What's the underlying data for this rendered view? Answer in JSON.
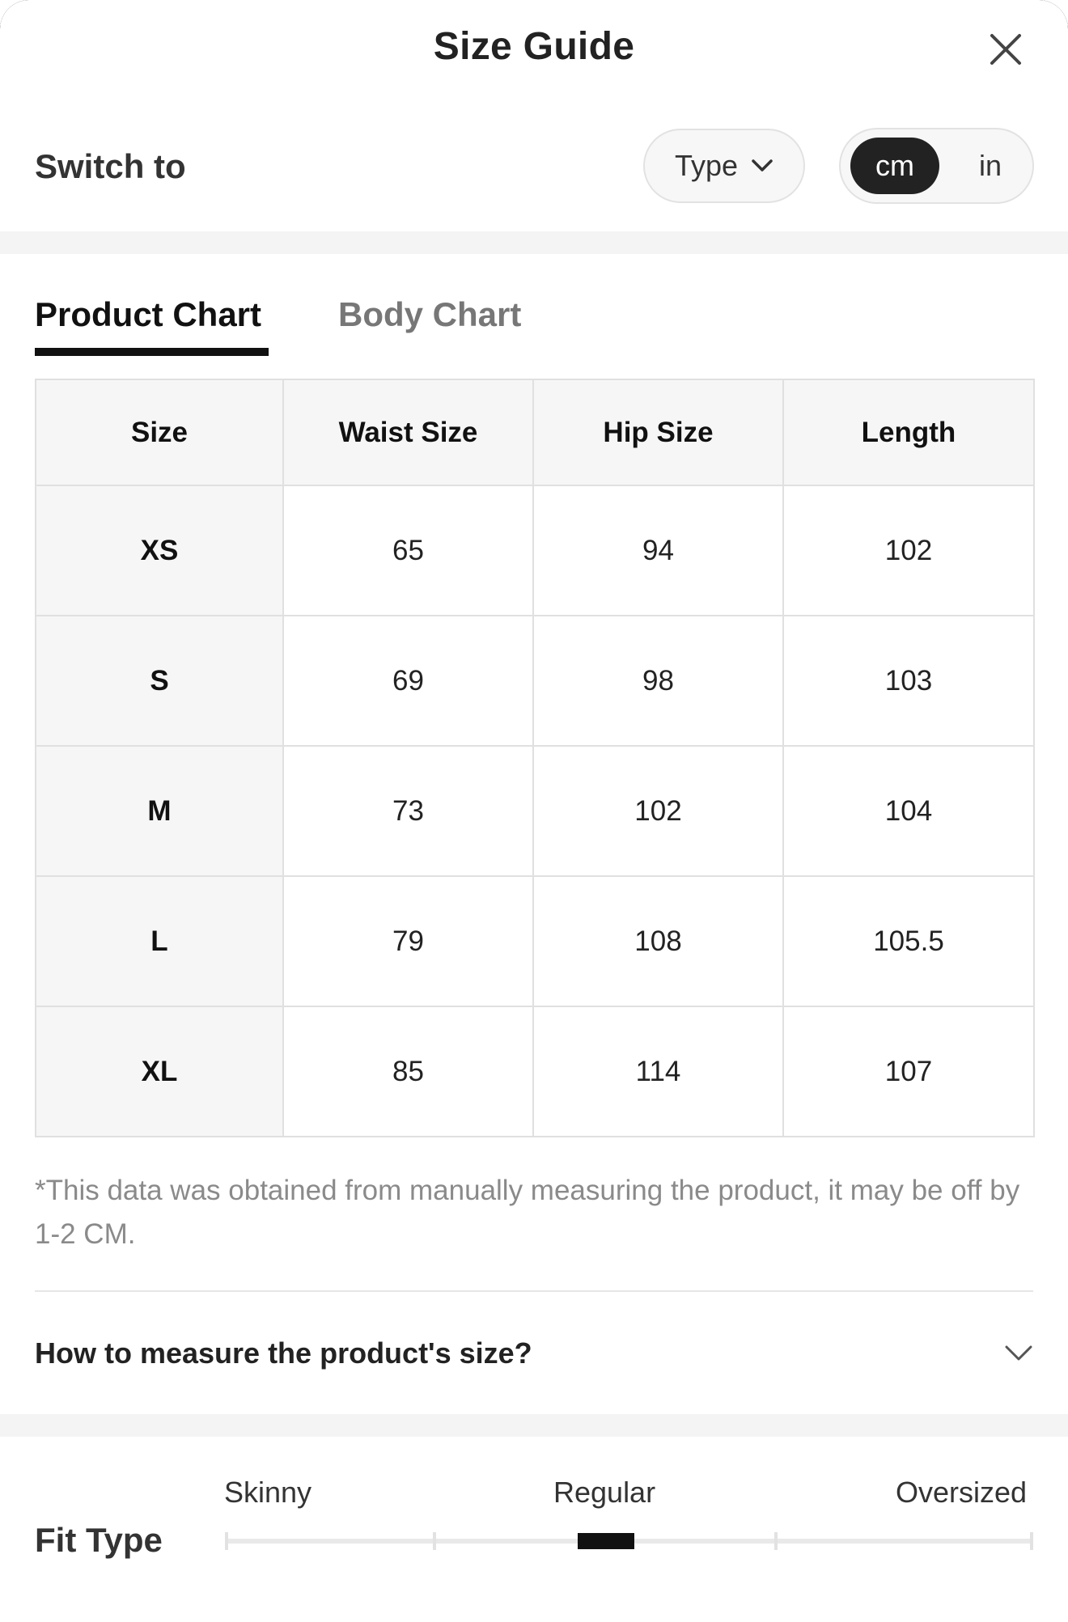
{
  "header": {
    "title": "Size Guide"
  },
  "switch": {
    "label": "Switch to",
    "type_select": "Type",
    "units": [
      "cm",
      "in"
    ],
    "active_unit": "cm"
  },
  "tabs": [
    {
      "label": "Product Chart",
      "active": true
    },
    {
      "label": "Body Chart",
      "active": false
    }
  ],
  "table": {
    "headers": [
      "Size",
      "Waist Size",
      "Hip Size",
      "Length"
    ],
    "rows": [
      [
        "XS",
        "65",
        "94",
        "102"
      ],
      [
        "S",
        "69",
        "98",
        "103"
      ],
      [
        "M",
        "73",
        "102",
        "104"
      ],
      [
        "L",
        "79",
        "108",
        "105.5"
      ],
      [
        "XL",
        "85",
        "114",
        "107"
      ]
    ]
  },
  "note": "*This data was obtained from manually measuring the product, it may be off by 1-2 CM.",
  "measure": {
    "label": "How to measure the product's size?"
  },
  "fit_type": {
    "label": "Fit Type",
    "scale": [
      "Skinny",
      "Regular",
      "Oversized"
    ],
    "selected": "Regular"
  },
  "colors": {
    "accent": "#111111",
    "muted_text": "#8a8a8a",
    "band": "#f4f4f4"
  }
}
